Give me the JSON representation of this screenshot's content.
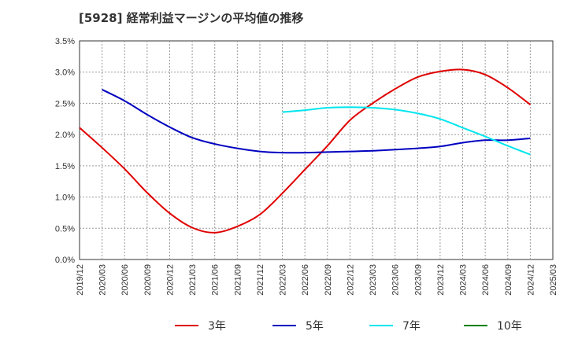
{
  "chart_data": {
    "type": "line",
    "title": "[5928]  経常利益マージンの平均値の推移",
    "xlabel": "",
    "ylabel": "",
    "ylim": [
      0,
      3.5
    ],
    "y_ticks": [
      "0.0%",
      "0.5%",
      "1.0%",
      "1.5%",
      "2.0%",
      "2.5%",
      "3.0%",
      "3.5%"
    ],
    "x_ticks": [
      "2019/12",
      "2020/03",
      "2020/06",
      "2020/09",
      "2020/12",
      "2021/03",
      "2021/06",
      "2021/09",
      "2021/12",
      "2022/03",
      "2022/06",
      "2022/09",
      "2022/12",
      "2023/03",
      "2023/06",
      "2023/09",
      "2023/12",
      "2024/03",
      "2024/06",
      "2024/09",
      "2024/12",
      "2025/03"
    ],
    "grid": true,
    "legend_position": "bottom",
    "series": [
      {
        "name": "3年",
        "color": "#e00000",
        "values": [
          2.11,
          1.79,
          1.45,
          1.07,
          0.74,
          0.51,
          0.43,
          0.53,
          0.72,
          1.06,
          1.44,
          1.82,
          2.23,
          2.5,
          2.73,
          2.92,
          3.01,
          3.04,
          2.96,
          2.75,
          2.48
        ]
      },
      {
        "name": "5年",
        "color": "#0000c0",
        "values": [
          null,
          2.72,
          2.54,
          2.32,
          2.12,
          1.95,
          1.85,
          1.78,
          1.73,
          1.71,
          1.71,
          1.72,
          1.73,
          1.74,
          1.76,
          1.78,
          1.81,
          1.87,
          1.91,
          1.91,
          1.94
        ]
      },
      {
        "name": "7年",
        "color": "#00e5ee",
        "values": [
          null,
          null,
          null,
          null,
          null,
          null,
          null,
          null,
          null,
          2.36,
          2.39,
          2.43,
          2.44,
          2.43,
          2.4,
          2.34,
          2.25,
          2.11,
          1.97,
          1.82,
          1.68
        ]
      },
      {
        "name": "10年",
        "color": "#008000",
        "values": []
      }
    ]
  }
}
